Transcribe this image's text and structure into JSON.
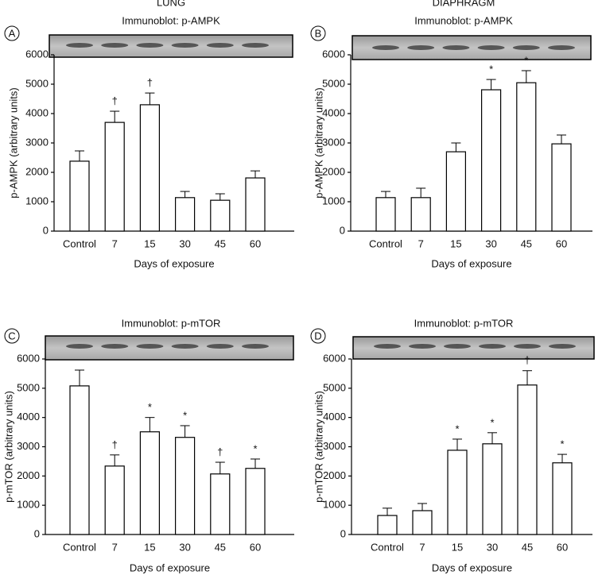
{
  "chart_data": [
    {
      "type": "bar",
      "panel": "A",
      "title": "LUNG",
      "subtitle": "Immunoblot: p-AMPK",
      "categories": [
        "Control",
        "7",
        "15",
        "30",
        "45",
        "60"
      ],
      "values": [
        2380,
        3700,
        4300,
        1140,
        1050,
        1810
      ],
      "errors": [
        350,
        380,
        400,
        210,
        220,
        240
      ],
      "markers": [
        null,
        "†",
        "†",
        null,
        null,
        null
      ],
      "xlabel": "Days of exposure",
      "ylabel": "p-AMPK (arbitrary units)",
      "ylim": [
        0,
        6000
      ],
      "yticks": [
        0,
        1000,
        2000,
        3000,
        4000,
        5000,
        6000
      ],
      "color": "#ffffff"
    },
    {
      "type": "bar",
      "panel": "B",
      "title": "DIAPHRAGM",
      "subtitle": "Immunoblot: p-AMPK",
      "categories": [
        "Control",
        "7",
        "15",
        "30",
        "45",
        "60"
      ],
      "values": [
        1140,
        1140,
        2700,
        4810,
        5050,
        2970
      ],
      "errors": [
        210,
        320,
        300,
        350,
        410,
        300
      ],
      "markers": [
        null,
        null,
        null,
        "*",
        "*",
        null
      ],
      "xlabel": "Days of exposure",
      "ylabel": "p-AMPK (arbitrary units)",
      "ylim": [
        0,
        6000
      ],
      "yticks": [
        0,
        1000,
        2000,
        3000,
        4000,
        5000,
        6000
      ],
      "color": "#ffffff"
    },
    {
      "type": "bar",
      "panel": "C",
      "subtitle": "Immunoblot: p-mTOR",
      "categories": [
        "Control",
        "7",
        "15",
        "30",
        "45",
        "60"
      ],
      "values": [
        5080,
        2340,
        3510,
        3320,
        2070,
        2260
      ],
      "errors": [
        540,
        380,
        490,
        400,
        400,
        320
      ],
      "markers": [
        null,
        "†",
        "*",
        "*",
        "†",
        "*"
      ],
      "xlabel": "Days of exposure",
      "ylabel": "p-mTOR (arbitrary units)",
      "ylim": [
        0,
        6000
      ],
      "yticks": [
        0,
        1000,
        2000,
        3000,
        4000,
        5000,
        6000
      ],
      "color": "#ffffff"
    },
    {
      "type": "bar",
      "panel": "D",
      "subtitle": "Immunoblot: p-mTOR",
      "categories": [
        "Control",
        "7",
        "15",
        "30",
        "45",
        "60"
      ],
      "values": [
        650,
        815,
        2880,
        3100,
        5110,
        2450
      ],
      "errors": [
        250,
        245,
        380,
        380,
        490,
        290
      ],
      "markers": [
        null,
        null,
        "*",
        "*",
        "†",
        "*"
      ],
      "xlabel": "Days of exposure",
      "ylabel": "p-mTOR (arbitrary units)",
      "ylim": [
        0,
        6000
      ],
      "yticks": [
        0,
        1000,
        2000,
        3000,
        4000,
        5000,
        6000
      ],
      "color": "#ffffff"
    }
  ]
}
